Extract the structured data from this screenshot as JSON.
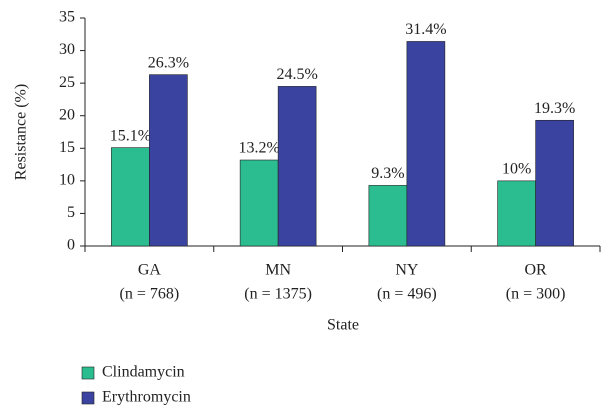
{
  "chart_data": {
    "type": "bar",
    "y_label": "Resistance (%)",
    "x_label": "State",
    "categories": [
      "GA",
      "MN",
      "NY",
      "OR"
    ],
    "category_notes": [
      "(n = 768)",
      "(n = 1375)",
      "(n = 496)",
      "(n = 300)"
    ],
    "series": [
      {
        "name": "Clindamycin",
        "color": "#2bbd8f",
        "values": [
          15.1,
          13.2,
          9.3,
          10
        ],
        "value_labels": [
          "15.1%",
          "13.2%",
          "9.3%",
          "10%"
        ]
      },
      {
        "name": "Erythromycin",
        "color": "#3a44a0",
        "values": [
          26.3,
          24.5,
          31.4,
          19.3
        ],
        "value_labels": [
          "26.3%",
          "24.5%",
          "31.4%",
          "19.3%"
        ]
      }
    ],
    "ylim": [
      0,
      35
    ],
    "yticks": [
      0,
      5,
      10,
      15,
      20,
      25,
      30,
      35
    ],
    "legend": "bottom-left"
  }
}
